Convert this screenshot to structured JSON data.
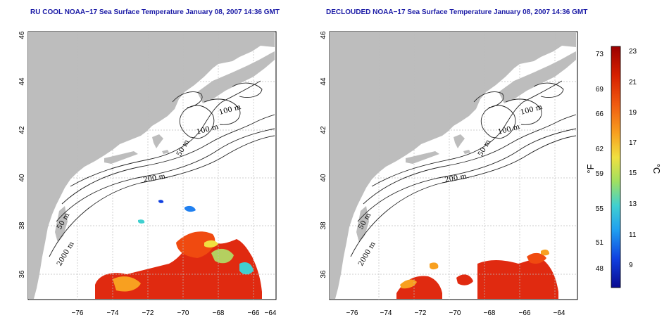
{
  "maps": [
    {
      "id": "left",
      "title": "RU COOL NOAA−17 Sea Surface Temperature January 08, 2007 14:36 GMT",
      "contour_labels": [
        "100 m",
        "100 m",
        "50 m",
        "200 m",
        "50 m",
        "2000 m"
      ]
    },
    {
      "id": "right",
      "title": "DECLOUDED NOAA−17 Sea Surface Temperature January 08, 2007 14:36 GMT",
      "contour_labels": [
        "100 m",
        "100 m",
        "50 m",
        "200 m",
        "50 m",
        "2000 m"
      ]
    }
  ],
  "axes": {
    "x_ticks": [
      "−76",
      "−74",
      "−72",
      "−70",
      "−68",
      "−66",
      "−64"
    ],
    "y_ticks": [
      "36",
      "38",
      "40",
      "42",
      "44",
      "46"
    ],
    "lon_range": [
      -77,
      -63
    ],
    "lat_range": [
      35,
      46
    ]
  },
  "colorbar": {
    "fahrenheit_label": "°F",
    "celsius_label": "°C",
    "fahrenheit_ticks": [
      "73",
      "69",
      "66",
      "62",
      "59",
      "55",
      "51",
      "48"
    ],
    "celsius_ticks": [
      "23",
      "21",
      "19",
      "17",
      "15",
      "13",
      "11",
      "9"
    ],
    "colors": [
      "#9b0000",
      "#d62000",
      "#f05a10",
      "#f8a020",
      "#f0e040",
      "#a0e060",
      "#40d0d0",
      "#20a0f0",
      "#1040e0",
      "#0a0a90"
    ]
  },
  "colors": {
    "land": "#bdbdbd",
    "title": "#1a1aa6",
    "sst_hot": "#e02a10"
  }
}
